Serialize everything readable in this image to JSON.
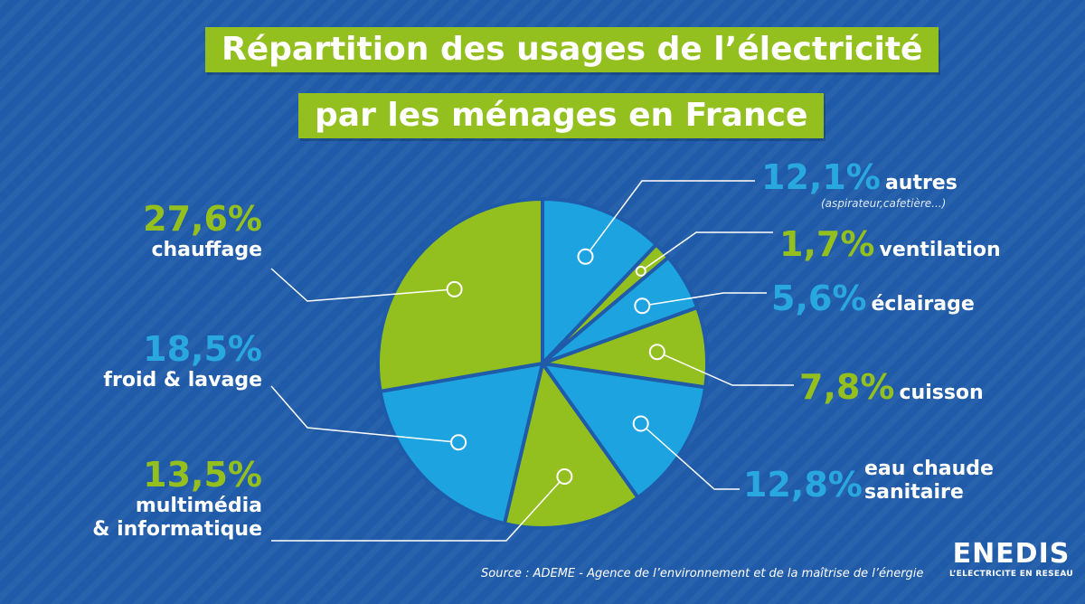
{
  "title": {
    "line1": "Répartition des usages de l’électricité",
    "line2": "par les ménages en France"
  },
  "colors": {
    "green": "#93c01f",
    "blue": "#29a8e0",
    "pie_blue": "#1da4e0",
    "background": "#1f5ba8"
  },
  "chart_data": {
    "type": "pie",
    "start": "12 o'clock, clockwise",
    "slices": [
      {
        "pct_label": "12,1%",
        "value": 12.1,
        "label": "autres",
        "sublabel": "(aspirateur,cafetière...)",
        "color": "blue"
      },
      {
        "pct_label": "1,7%",
        "value": 1.7,
        "label": "ventilation",
        "color": "green"
      },
      {
        "pct_label": "5,6%",
        "value": 5.6,
        "label": "éclairage",
        "color": "blue"
      },
      {
        "pct_label": "7,8%",
        "value": 7.8,
        "label": "cuisson",
        "color": "green"
      },
      {
        "pct_label": "12,8%",
        "value": 12.8,
        "label_line1": "eau chaude",
        "label_line2": "sanitaire",
        "color": "blue"
      },
      {
        "pct_label": "13,5%",
        "value": 13.5,
        "label_line1": "multimédia",
        "label_line2": "& informatique",
        "color": "green"
      },
      {
        "pct_label": "18,5%",
        "value": 18.5,
        "label": "froid & lavage",
        "color": "blue"
      },
      {
        "pct_label": "27,6%",
        "value": 27.6,
        "label": "chauffage",
        "color": "green"
      }
    ]
  },
  "source": "Source :  ADEME - Agence de l’environnement et de la maîtrise de l’énergie",
  "logo": {
    "name": "ENEDIS",
    "tagline": "L’ELECTRICITE EN RESEAU"
  }
}
